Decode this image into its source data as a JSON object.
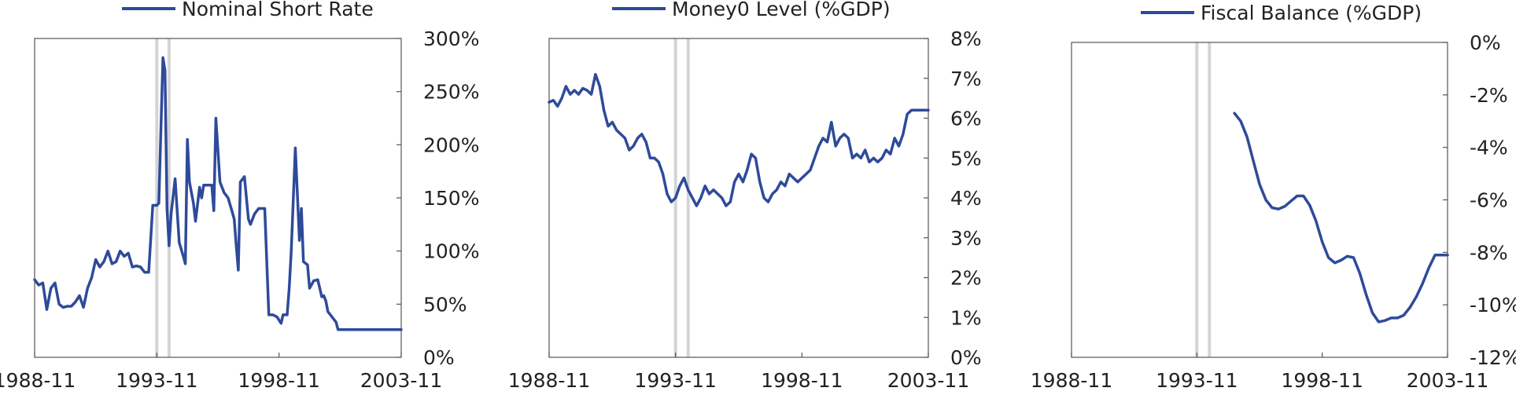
{
  "colors": {
    "series": "#2e4a9a",
    "band": "#d4d4d4",
    "axis": "#555555"
  },
  "chart_data": [
    {
      "type": "line",
      "title": "",
      "legend": "top-center",
      "grid": false,
      "x_ticks": [
        "1988-11",
        "1993-11",
        "1998-11",
        "2003-11"
      ],
      "xlim": [
        "1988-11",
        "2003-11"
      ],
      "y_ticks": [
        "0%",
        "50%",
        "100%",
        "150%",
        "200%",
        "250%",
        "300%"
      ],
      "ylim": [
        0,
        300
      ],
      "shaded_periods": [
        [
          "1993-11",
          "1993-11"
        ],
        [
          "1994-05",
          "1994-05"
        ]
      ],
      "series": [
        {
          "name": "Nominal Short Rate",
          "x": [
            "1988-11",
            "1989-01",
            "1989-03",
            "1989-05",
            "1989-07",
            "1989-09",
            "1989-11",
            "1990-01",
            "1990-03",
            "1990-05",
            "1990-07",
            "1990-09",
            "1990-11",
            "1991-01",
            "1991-03",
            "1991-05",
            "1991-07",
            "1991-09",
            "1991-11",
            "1992-01",
            "1992-03",
            "1992-05",
            "1992-07",
            "1992-09",
            "1992-11",
            "1993-01",
            "1993-03",
            "1993-05",
            "1993-07",
            "1993-09",
            "1993-11",
            "1993-12",
            "1994-02",
            "1994-03",
            "1994-04",
            "1994-05",
            "1994-06",
            "1994-08",
            "1994-10",
            "1994-12",
            "1995-01",
            "1995-02",
            "1995-03",
            "1995-05",
            "1995-06",
            "1995-08",
            "1995-09",
            "1995-10",
            "1995-11",
            "1995-12",
            "1996-02",
            "1996-03",
            "1996-04",
            "1996-06",
            "1996-08",
            "1996-10",
            "1996-12",
            "1997-01",
            "1997-02",
            "1997-03",
            "1997-04",
            "1997-06",
            "1997-08",
            "1997-09",
            "1997-11",
            "1998-01",
            "1998-02",
            "1998-03",
            "1998-04",
            "1998-06",
            "1998-08",
            "1998-10",
            "1998-12",
            "1999-01",
            "1999-03",
            "1999-04",
            "1999-05",
            "1999-07",
            "1999-09",
            "1999-10",
            "1999-11",
            "2000-01",
            "2000-02",
            "2000-04",
            "2000-06",
            "2000-08",
            "2000-09",
            "2000-10",
            "2000-11",
            "2001-01",
            "2001-03",
            "2001-04",
            "2001-05",
            "2001-07",
            "2001-09",
            "2001-10",
            "2002-01",
            "2002-03",
            "2002-05",
            "2002-07",
            "2002-09",
            "2002-11",
            "2003-01",
            "2003-03",
            "2003-05",
            "2003-07",
            "2003-09",
            "2003-11"
          ],
          "values": [
            73,
            68,
            70,
            45,
            65,
            70,
            50,
            47,
            48,
            48,
            52,
            58,
            47,
            65,
            75,
            92,
            85,
            90,
            100,
            88,
            90,
            100,
            95,
            98,
            85,
            86,
            85,
            80,
            80,
            143,
            143,
            145,
            282,
            270,
            140,
            105,
            135,
            168,
            108,
            95,
            88,
            205,
            165,
            145,
            128,
            160,
            150,
            162,
            162,
            162,
            162,
            138,
            225,
            165,
            155,
            150,
            137,
            130,
            105,
            82,
            165,
            170,
            130,
            125,
            135,
            140,
            140,
            140,
            140,
            40,
            40,
            38,
            32,
            40,
            40,
            65,
            100,
            197,
            110,
            140,
            90,
            87,
            65,
            72,
            73,
            57,
            58,
            53,
            43,
            38,
            33,
            26,
            26,
            26,
            26,
            26,
            26,
            26,
            26,
            26,
            26,
            26,
            26,
            26,
            26,
            26,
            26,
            26
          ],
          "values_note": ""
        }
      ]
    },
    {
      "type": "line",
      "title": "",
      "legend": "top-center",
      "grid": false,
      "x_ticks": [
        "1988-11",
        "1993-11",
        "1998-11",
        "2003-11"
      ],
      "xlim": [
        "1988-11",
        "2003-11"
      ],
      "y_ticks": [
        "0%",
        "1%",
        "2%",
        "3%",
        "4%",
        "5%",
        "6%",
        "7%",
        "8%"
      ],
      "ylim": [
        0,
        8
      ],
      "shaded_periods": [
        [
          "1993-11",
          "1993-11"
        ],
        [
          "1994-05",
          "1994-05"
        ]
      ],
      "series": [
        {
          "name": "Money0 Level (%GDP)",
          "x": [
            "1988-11",
            "1989-01",
            "1989-03",
            "1989-05",
            "1989-07",
            "1989-09",
            "1989-11",
            "1990-01",
            "1990-03",
            "1990-05",
            "1990-07",
            "1990-09",
            "1990-11",
            "1991-01",
            "1991-03",
            "1991-05",
            "1991-07",
            "1991-09",
            "1991-11",
            "1992-01",
            "1992-03",
            "1992-05",
            "1992-07",
            "1992-09",
            "1992-11",
            "1993-01",
            "1993-03",
            "1993-05",
            "1993-07",
            "1993-09",
            "1993-11",
            "1994-01",
            "1994-03",
            "1994-05",
            "1994-07",
            "1994-09",
            "1994-11",
            "1995-01",
            "1995-03",
            "1995-05",
            "1995-07",
            "1995-09",
            "1995-11",
            "1996-01",
            "1996-03",
            "1996-05",
            "1996-07",
            "1996-09",
            "1996-11",
            "1997-01",
            "1997-03",
            "1997-05",
            "1997-07",
            "1997-09",
            "1997-11",
            "1998-01",
            "1998-03",
            "1998-05",
            "1998-07",
            "1998-09",
            "1998-11",
            "1999-01",
            "1999-03",
            "1999-05",
            "1999-07",
            "1999-09",
            "1999-11",
            "2000-01",
            "2000-03",
            "2000-05",
            "2000-07",
            "2000-09",
            "2000-11",
            "2001-01",
            "2001-03",
            "2001-05",
            "2001-07",
            "2001-09",
            "2001-11",
            "2002-01",
            "2002-03",
            "2002-05",
            "2002-07",
            "2002-09",
            "2002-11",
            "2003-01",
            "2003-03",
            "2003-05",
            "2003-07",
            "2003-09",
            "2003-11"
          ],
          "values": [
            6.4,
            6.45,
            6.3,
            6.5,
            6.8,
            6.6,
            6.7,
            6.6,
            6.75,
            6.7,
            6.6,
            7.1,
            6.8,
            6.2,
            5.8,
            5.9,
            5.7,
            5.6,
            5.5,
            5.2,
            5.3,
            5.5,
            5.6,
            5.4,
            5.0,
            5.0,
            4.9,
            4.6,
            4.1,
            3.9,
            4.0,
            4.3,
            4.5,
            4.2,
            4.0,
            3.8,
            4.0,
            4.3,
            4.1,
            4.2,
            4.1,
            4.0,
            3.8,
            3.9,
            4.4,
            4.6,
            4.4,
            4.7,
            5.1,
            5.0,
            4.4,
            4.0,
            3.9,
            4.1,
            4.2,
            4.4,
            4.3,
            4.6,
            4.5,
            4.4,
            4.5,
            4.6,
            4.7,
            5.0,
            5.3,
            5.5,
            5.4,
            5.9,
            5.3,
            5.5,
            5.6,
            5.5,
            5.0,
            5.1,
            5.0,
            5.2,
            4.9,
            5.0,
            4.9,
            5.0,
            5.2,
            5.1,
            5.5,
            5.3,
            5.6,
            6.1,
            6.2,
            6.2,
            6.2,
            6.2,
            6.2
          ]
        }
      ]
    },
    {
      "type": "line",
      "title": "",
      "legend": "top-center",
      "grid": false,
      "x_ticks": [
        "1988-11",
        "1993-11",
        "1998-11",
        "2003-11"
      ],
      "xlim": [
        "1988-11",
        "2003-11"
      ],
      "y_ticks": [
        "-12%",
        "-10%",
        "-8%",
        "-6%",
        "-4%",
        "-2%",
        "0%"
      ],
      "ylim": [
        -12,
        0
      ],
      "shaded_periods": [
        [
          "1993-11",
          "1993-11"
        ],
        [
          "1994-05",
          "1994-05"
        ]
      ],
      "series": [
        {
          "name": "Fiscal Balance (%GDP)",
          "x": [
            "1995-05",
            "1995-08",
            "1995-11",
            "1996-02",
            "1996-05",
            "1996-08",
            "1996-11",
            "1997-02",
            "1997-05",
            "1997-08",
            "1997-11",
            "1998-02",
            "1998-05",
            "1998-08",
            "1998-11",
            "1999-02",
            "1999-05",
            "1999-08",
            "1999-11",
            "2000-02",
            "2000-05",
            "2000-08",
            "2000-11",
            "2001-02",
            "2001-05",
            "2001-08",
            "2001-11",
            "2002-02",
            "2002-05",
            "2002-08",
            "2002-11",
            "2003-02",
            "2003-05",
            "2003-08",
            "2003-11"
          ],
          "values": [
            -2.7,
            -3.0,
            -3.6,
            -4.5,
            -5.4,
            -6.0,
            -6.3,
            -6.35,
            -6.25,
            -6.05,
            -5.85,
            -5.85,
            -6.2,
            -6.8,
            -7.6,
            -8.2,
            -8.4,
            -8.3,
            -8.15,
            -8.2,
            -8.8,
            -9.6,
            -10.3,
            -10.65,
            -10.6,
            -10.5,
            -10.5,
            -10.4,
            -10.1,
            -9.7,
            -9.2,
            -8.6,
            -8.1,
            -8.1,
            -8.1
          ]
        }
      ]
    }
  ]
}
